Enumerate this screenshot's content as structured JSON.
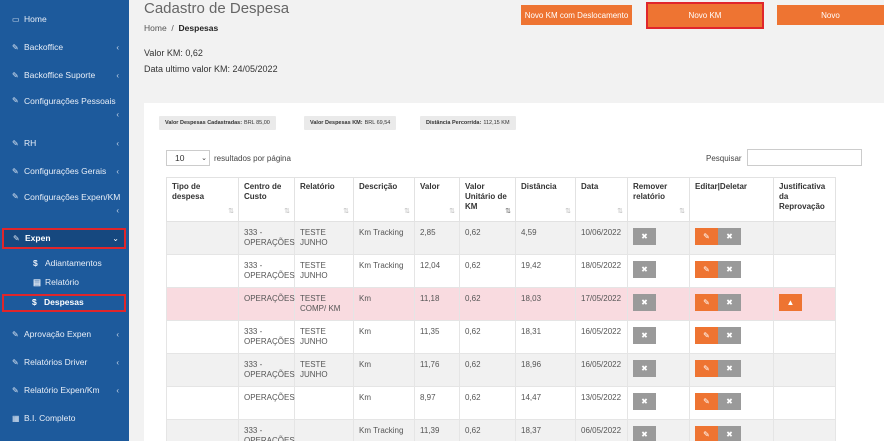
{
  "sidebar": {
    "items": [
      {
        "label": "Home",
        "icon": "monitor-icon"
      },
      {
        "label": "Backoffice",
        "icon": "edit-icon"
      },
      {
        "label": "Backoffice Suporte",
        "icon": "edit-icon"
      },
      {
        "label": "Configurações Pessoais",
        "icon": "edit-icon"
      },
      {
        "label": "RH",
        "icon": "edit-icon"
      },
      {
        "label": "Configurações Gerais",
        "icon": "edit-icon"
      },
      {
        "label": "Configurações Expen/KM",
        "icon": "edit-icon"
      },
      {
        "label": "Expen",
        "icon": "edit-icon"
      },
      {
        "label": "Aprovação Expen",
        "icon": "edit-icon"
      },
      {
        "label": "Relatórios Driver",
        "icon": "edit-icon"
      },
      {
        "label": "Relatório Expen/Km",
        "icon": "edit-icon"
      },
      {
        "label": "B.I. Completo",
        "icon": "grid-icon"
      }
    ],
    "subitems": [
      {
        "label": "Adiantamentos",
        "icon": "dollar-icon"
      },
      {
        "label": "Relatório",
        "icon": "list-icon"
      },
      {
        "label": "Despesas",
        "icon": "dollar-icon"
      }
    ]
  },
  "header": {
    "title": "Cadastro de Despesa",
    "breadcrumb_home": "Home",
    "breadcrumb_sep": "/",
    "breadcrumb_current": "Despesas",
    "valor_km": "Valor KM: 0,62",
    "data_ultimo": "Data ultimo valor KM: 24/05/2022"
  },
  "buttons": {
    "novo_km_desloc": "Novo KM com Deslocamento",
    "novo_km": "Novo KM",
    "novo": "Novo"
  },
  "badges": [
    {
      "label": "Valor Despesas Cadastradas:",
      "value": "BRL 85,00"
    },
    {
      "label": "Valor Despesas KM:",
      "value": "BRL 69,54"
    },
    {
      "label": "Distância Percorrida:",
      "value": "112,15 KM"
    }
  ],
  "table_controls": {
    "page_length": "10",
    "length_label": "resultados por página",
    "search_label": "Pesquisar"
  },
  "columns": [
    "Tipo de despesa",
    "Centro de Custo",
    "Relatório",
    "Descrição",
    "Valor",
    "Valor Unitário de KM",
    "Distância",
    "Data",
    "Remover relatório",
    "Editar|Deletar",
    "Justificativa da Reprovação"
  ],
  "rows": [
    {
      "tipo": "",
      "centro": "333 - OPERAÇÕES",
      "relatorio": "TESTE JUNHO",
      "descricao": "Km Tracking",
      "valor": "2,85",
      "unit": "0,62",
      "dist": "4,59",
      "data": "10/06/2022",
      "status": "odd"
    },
    {
      "tipo": "",
      "centro": "333 - OPERAÇÕES",
      "relatorio": "TESTE JUNHO",
      "descricao": "Km Tracking",
      "valor": "12,04",
      "unit": "0,62",
      "dist": "19,42",
      "data": "18/05/2022",
      "status": "even"
    },
    {
      "tipo": "",
      "centro": "OPERAÇÕES",
      "relatorio": "TESTE COMP/ KM",
      "descricao": "Km",
      "valor": "11,18",
      "unit": "0,62",
      "dist": "18,03",
      "data": "17/05/2022",
      "status": "reproved"
    },
    {
      "tipo": "",
      "centro": "333 - OPERAÇÕES",
      "relatorio": "TESTE JUNHO",
      "descricao": "Km",
      "valor": "11,35",
      "unit": "0,62",
      "dist": "18,31",
      "data": "16/05/2022",
      "status": "even"
    },
    {
      "tipo": "",
      "centro": "333 - OPERAÇÕES",
      "relatorio": "TESTE JUNHO",
      "descricao": "Km",
      "valor": "11,76",
      "unit": "0,62",
      "dist": "18,96",
      "data": "16/05/2022",
      "status": "odd"
    },
    {
      "tipo": "",
      "centro": "OPERAÇÕES",
      "relatorio": "",
      "descricao": "Km",
      "valor": "8,97",
      "unit": "0,62",
      "dist": "14,47",
      "data": "13/05/2022",
      "status": "even"
    },
    {
      "tipo": "",
      "centro": "333 - OPERAÇÕES",
      "relatorio": "",
      "descricao": "Km Tracking",
      "valor": "11,39",
      "unit": "0,62",
      "dist": "18,37",
      "data": "06/05/2022",
      "status": "odd"
    }
  ],
  "colors": {
    "sidebar": "#1d5a9c",
    "accent": "#ee7432",
    "highlight": "#e0262b"
  }
}
